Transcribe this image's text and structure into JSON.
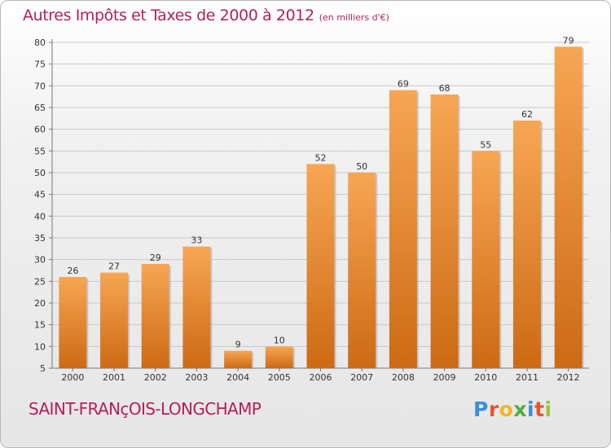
{
  "chart_data": {
    "type": "bar",
    "title": "Autres Impôts et Taxes de 2000 à 2012",
    "unit": "(en milliers d'€)",
    "categories": [
      "2000",
      "2001",
      "2002",
      "2003",
      "2004",
      "2005",
      "2006",
      "2007",
      "2008",
      "2009",
      "2010",
      "2011",
      "2012"
    ],
    "values": [
      26,
      27,
      29,
      33,
      9,
      10,
      52,
      50,
      69,
      68,
      55,
      62,
      79
    ],
    "ylim": [
      5,
      80
    ],
    "yticks": [
      5,
      10,
      15,
      20,
      25,
      30,
      35,
      40,
      45,
      50,
      55,
      60,
      65,
      70,
      75,
      80
    ],
    "grid": true,
    "bar_color": "#f0923a",
    "title_color": "#b4205a"
  },
  "footer": {
    "town": "SAINT-FRANçOIS-LONGCHAMP",
    "logo_letters": [
      "P",
      "r",
      "o",
      "x",
      "i",
      "t",
      "i"
    ],
    "logo_colors": [
      "#3b8ed6",
      "#e8542c",
      "#f2b51d",
      "#4caf3f",
      "#3b8ed6",
      "#e8542c",
      "#9ac43c"
    ]
  }
}
